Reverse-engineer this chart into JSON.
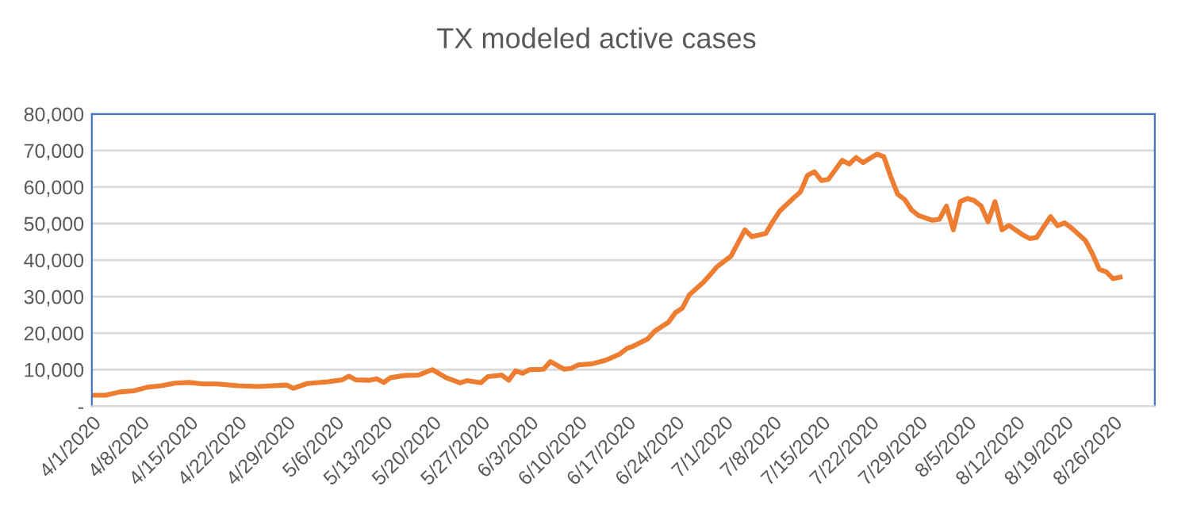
{
  "chart_data": {
    "type": "line",
    "title": "TX modeled active cases",
    "x": [
      "2020-04-01",
      "2020-04-03",
      "2020-04-05",
      "2020-04-07",
      "2020-04-09",
      "2020-04-11",
      "2020-04-13",
      "2020-04-15",
      "2020-04-17",
      "2020-04-19",
      "2020-04-22",
      "2020-04-25",
      "2020-04-29",
      "2020-04-30",
      "2020-05-02",
      "2020-05-05",
      "2020-05-07",
      "2020-05-08",
      "2020-05-09",
      "2020-05-11",
      "2020-05-12",
      "2020-05-13",
      "2020-05-14",
      "2020-05-16",
      "2020-05-18",
      "2020-05-20",
      "2020-05-22",
      "2020-05-24",
      "2020-05-25",
      "2020-05-27",
      "2020-05-28",
      "2020-05-30",
      "2020-05-31",
      "2020-06-01",
      "2020-06-02",
      "2020-06-03",
      "2020-06-05",
      "2020-06-06",
      "2020-06-08",
      "2020-06-09",
      "2020-06-10",
      "2020-06-12",
      "2020-06-14",
      "2020-06-16",
      "2020-06-17",
      "2020-06-18",
      "2020-06-20",
      "2020-06-21",
      "2020-06-23",
      "2020-06-24",
      "2020-06-25",
      "2020-06-26",
      "2020-06-28",
      "2020-06-29",
      "2020-06-30",
      "2020-07-02",
      "2020-07-03",
      "2020-07-04",
      "2020-07-05",
      "2020-07-07",
      "2020-07-08",
      "2020-07-09",
      "2020-07-11",
      "2020-07-12",
      "2020-07-13",
      "2020-07-14",
      "2020-07-15",
      "2020-07-16",
      "2020-07-18",
      "2020-07-19",
      "2020-07-20",
      "2020-07-21",
      "2020-07-23",
      "2020-07-24",
      "2020-07-25",
      "2020-07-26",
      "2020-07-27",
      "2020-07-28",
      "2020-07-29",
      "2020-07-31",
      "2020-08-01",
      "2020-08-02",
      "2020-08-03",
      "2020-08-04",
      "2020-08-05",
      "2020-08-06",
      "2020-08-07",
      "2020-08-08",
      "2020-08-09",
      "2020-08-10",
      "2020-08-11",
      "2020-08-13",
      "2020-08-14",
      "2020-08-15",
      "2020-08-16",
      "2020-08-17",
      "2020-08-18",
      "2020-08-19",
      "2020-08-20",
      "2020-08-22",
      "2020-08-23",
      "2020-08-24",
      "2020-08-25",
      "2020-08-26",
      "2020-08-27"
    ],
    "series": [
      {
        "color": "#ed7d31",
        "values": [
          3000,
          3000,
          3900,
          4200,
          5200,
          5600,
          6300,
          6500,
          6100,
          6100,
          5600,
          5400,
          5800,
          4900,
          6200,
          6700,
          7200,
          8200,
          7200,
          7100,
          7500,
          6500,
          7800,
          8400,
          8500,
          10000,
          7800,
          6400,
          7000,
          6400,
          8100,
          8500,
          7100,
          9700,
          9000,
          10000,
          10100,
          12200,
          10100,
          10400,
          11300,
          11600,
          12600,
          14300,
          15800,
          16500,
          18400,
          20500,
          23000,
          25600,
          26900,
          30500,
          33900,
          36000,
          38200,
          41100,
          44700,
          48300,
          46400,
          47300,
          50500,
          53400,
          57000,
          58700,
          63200,
          64200,
          61800,
          62100,
          67300,
          66300,
          68100,
          66700,
          69000,
          68300,
          62800,
          58000,
          56600,
          53700,
          52200,
          50900,
          51200,
          54800,
          48300,
          56000,
          56900,
          56300,
          54800,
          50500,
          56000,
          48300,
          49500,
          46900,
          45900,
          46200,
          49100,
          51900,
          49400,
          50200,
          48800,
          45400,
          41800,
          37500,
          36800,
          34900,
          35300
        ]
      }
    ],
    "xlim": [
      "2020-04-01",
      "2020-09-01"
    ],
    "xticks": [
      {
        "value": "2020-04-01",
        "label": "4/1/2020"
      },
      {
        "value": "2020-04-08",
        "label": "4/8/2020"
      },
      {
        "value": "2020-04-15",
        "label": "4/15/2020"
      },
      {
        "value": "2020-04-22",
        "label": "4/22/2020"
      },
      {
        "value": "2020-04-29",
        "label": "4/29/2020"
      },
      {
        "value": "2020-05-06",
        "label": "5/6/2020"
      },
      {
        "value": "2020-05-13",
        "label": "5/13/2020"
      },
      {
        "value": "2020-05-20",
        "label": "5/20/2020"
      },
      {
        "value": "2020-05-27",
        "label": "5/27/2020"
      },
      {
        "value": "2020-06-03",
        "label": "6/3/2020"
      },
      {
        "value": "2020-06-10",
        "label": "6/10/2020"
      },
      {
        "value": "2020-06-17",
        "label": "6/17/2020"
      },
      {
        "value": "2020-06-24",
        "label": "6/24/2020"
      },
      {
        "value": "2020-07-01",
        "label": "7/1/2020"
      },
      {
        "value": "2020-07-08",
        "label": "7/8/2020"
      },
      {
        "value": "2020-07-15",
        "label": "7/15/2020"
      },
      {
        "value": "2020-07-22",
        "label": "7/22/2020"
      },
      {
        "value": "2020-07-29",
        "label": "7/29/2020"
      },
      {
        "value": "2020-08-05",
        "label": "8/5/2020"
      },
      {
        "value": "2020-08-12",
        "label": "8/12/2020"
      },
      {
        "value": "2020-08-19",
        "label": "8/19/2020"
      },
      {
        "value": "2020-08-26",
        "label": "8/26/2020"
      }
    ],
    "ylim": [
      0,
      80000
    ],
    "yticks": [
      {
        "value": 0,
        "label": "-"
      },
      {
        "value": 10000,
        "label": "10,000"
      },
      {
        "value": 20000,
        "label": "20,000"
      },
      {
        "value": 30000,
        "label": "30,000"
      },
      {
        "value": 40000,
        "label": "40,000"
      },
      {
        "value": 50000,
        "label": "50,000"
      },
      {
        "value": 60000,
        "label": "60,000"
      },
      {
        "value": 70000,
        "label": "70,000"
      },
      {
        "value": 80000,
        "label": "80,000"
      }
    ],
    "grid": "y",
    "marker": "none",
    "line_style": "solid"
  }
}
